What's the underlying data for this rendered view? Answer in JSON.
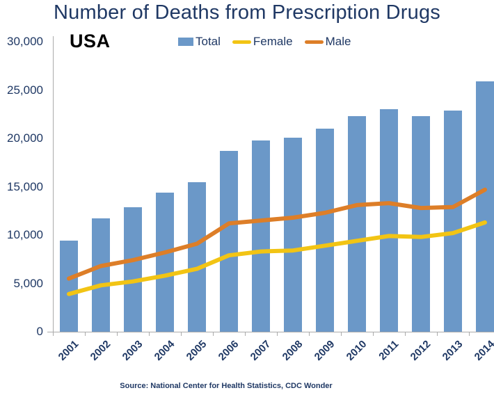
{
  "title": "Number of Deaths from Prescription Drugs",
  "region_label": "USA",
  "source": "Source: National Center for Health Statistics, CDC Wonder",
  "colors": {
    "title_text": "#1F3864",
    "bar_blue": "#6B98C8",
    "female_yellow": "#F2C414",
    "male_orange": "#DD7E28",
    "axis_gray": "#ABABAB"
  },
  "chart_data": {
    "type": "bar",
    "title": "Number of Deaths from Prescription Drugs",
    "subtitle": "USA",
    "categories": [
      "2001",
      "2002",
      "2003",
      "2004",
      "2005",
      "2006",
      "2007",
      "2008",
      "2009",
      "2010",
      "2011",
      "2012",
      "2013",
      "2014"
    ],
    "series": [
      {
        "name": "Total",
        "type": "bar",
        "color": "#6B98C8",
        "values": [
          9400,
          11700,
          12900,
          14400,
          15500,
          18700,
          19800,
          20100,
          21000,
          22300,
          23000,
          22300,
          22900,
          25900
        ]
      },
      {
        "name": "Female",
        "type": "line",
        "color": "#F2C414",
        "values": [
          3900,
          4800,
          5200,
          5800,
          6500,
          7900,
          8300,
          8400,
          8900,
          9400,
          9900,
          9800,
          10200,
          11300
        ]
      },
      {
        "name": "Male",
        "type": "line",
        "color": "#DD7E28",
        "values": [
          5500,
          6800,
          7400,
          8200,
          9100,
          11200,
          11500,
          11800,
          12300,
          13100,
          13300,
          12800,
          12900,
          14700
        ]
      }
    ],
    "xlabel": "",
    "ylabel": "",
    "ylim": [
      0,
      30000
    ],
    "y_tick_labels": [
      "0",
      "5,000",
      "10,000",
      "15,000",
      "20,000",
      "25,000",
      "30,000"
    ],
    "y_tick_values": [
      0,
      5000,
      10000,
      15000,
      20000,
      25000,
      30000
    ],
    "grid": false,
    "legend_position": "top"
  }
}
